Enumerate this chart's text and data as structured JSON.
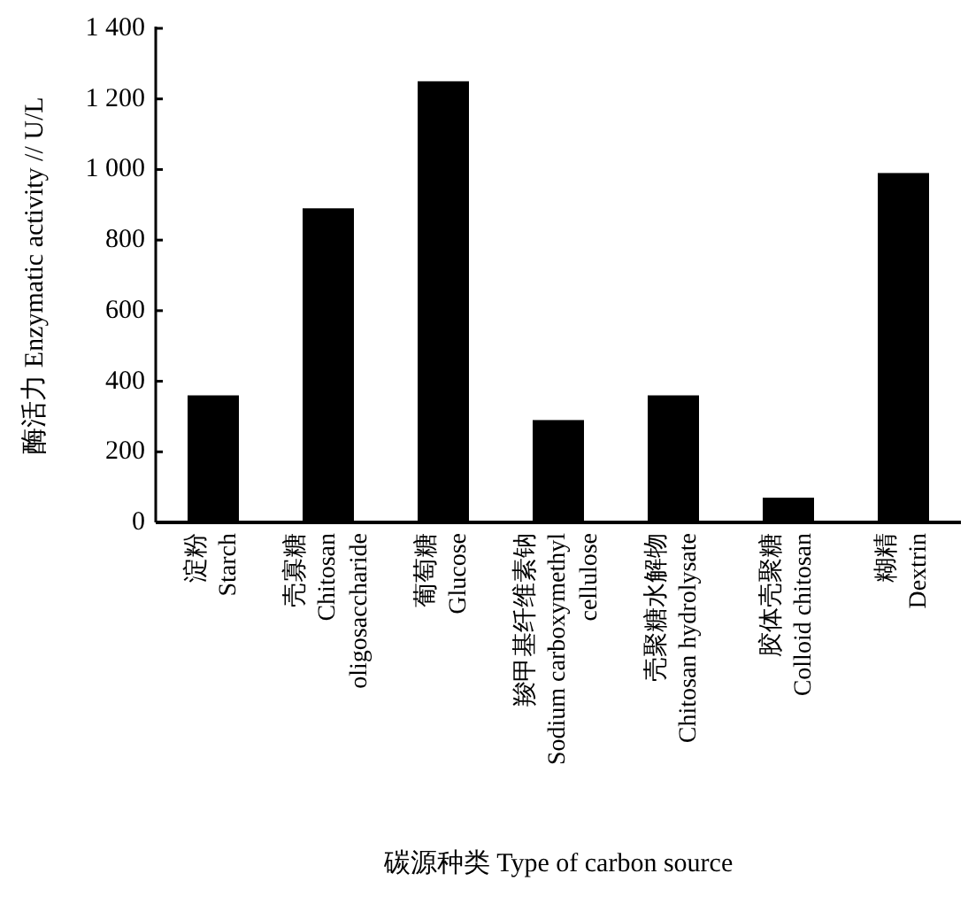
{
  "chart_data": {
    "type": "bar",
    "xlabel": "碳源种类 Type of carbon source",
    "ylabel": "酶活力 Enzymatic activity // U/L",
    "categories": [
      "淀粉\nStarch",
      "壳寡糖\nChitosan\noligosaccharide",
      "葡萄糖\nGlucose",
      "羧甲基纤维素钠\nSodium carboxymethyl\ncellulose",
      "壳聚糖水解物\nChitosan hydrolysate",
      "胶体壳聚糖\nColloid chitosan",
      "糊精\nDextrin"
    ],
    "values": [
      360,
      890,
      1250,
      290,
      360,
      70,
      990
    ],
    "color": "#000000",
    "ylim": [
      0,
      1400
    ],
    "yticks": [
      0,
      200,
      400,
      600,
      800,
      {
        "value": 1000,
        "label": "1 000"
      },
      {
        "value": 1200,
        "label": "1 200"
      },
      {
        "value": 1400,
        "label": "1 400"
      }
    ],
    "grid": false
  }
}
